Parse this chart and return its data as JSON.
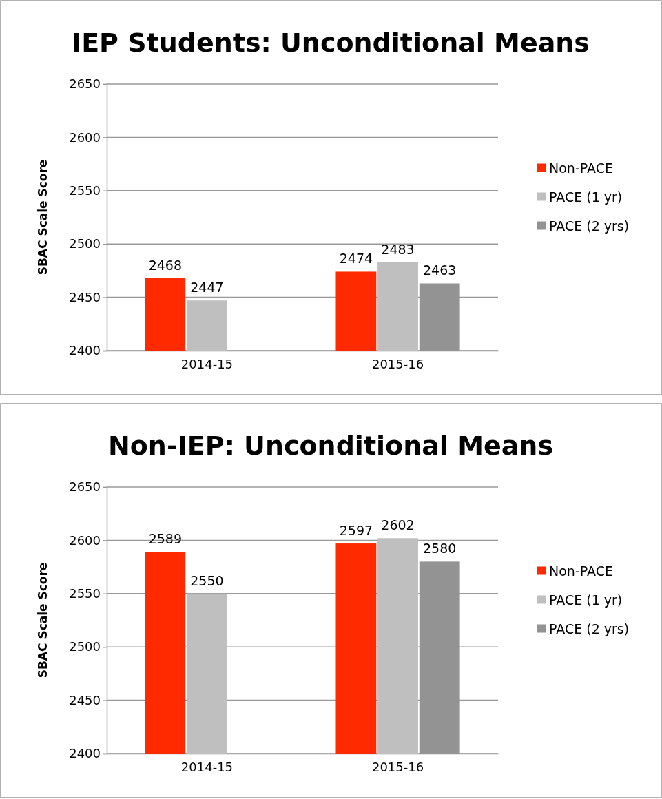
{
  "chart_data": [
    {
      "type": "bar",
      "title": "IEP Students: Unconditional Means",
      "ylabel": "SBAC Scale Score",
      "categories": [
        "2014-15",
        "2015-16"
      ],
      "series": [
        {
          "name": "Non-PACE",
          "color": "#ff2a00",
          "values": [
            2468,
            2474
          ]
        },
        {
          "name": "PACE (1 yr)",
          "color": "#bfbfbf",
          "values": [
            2447,
            2483
          ]
        },
        {
          "name": "PACE (2 yrs)",
          "color": "#939393",
          "values": [
            null,
            2463
          ]
        }
      ],
      "ylim": [
        2400,
        2650
      ],
      "yticks": [
        2400,
        2450,
        2500,
        2550,
        2600,
        2650
      ],
      "grid": "y",
      "legend": "right",
      "data_labels": true
    },
    {
      "type": "bar",
      "title": "Non-IEP: Unconditional Means",
      "ylabel": "SBAC Scale Score",
      "categories": [
        "2014-15",
        "2015-16"
      ],
      "series": [
        {
          "name": "Non-PACE",
          "color": "#ff2a00",
          "values": [
            2589,
            2597
          ]
        },
        {
          "name": "PACE (1 yr)",
          "color": "#bfbfbf",
          "values": [
            2550,
            2602
          ]
        },
        {
          "name": "PACE (2 yrs)",
          "color": "#939393",
          "values": [
            null,
            2580
          ]
        }
      ],
      "ylim": [
        2400,
        2650
      ],
      "yticks": [
        2400,
        2450,
        2500,
        2550,
        2600,
        2650
      ],
      "grid": "y",
      "legend": "right",
      "data_labels": true
    }
  ]
}
